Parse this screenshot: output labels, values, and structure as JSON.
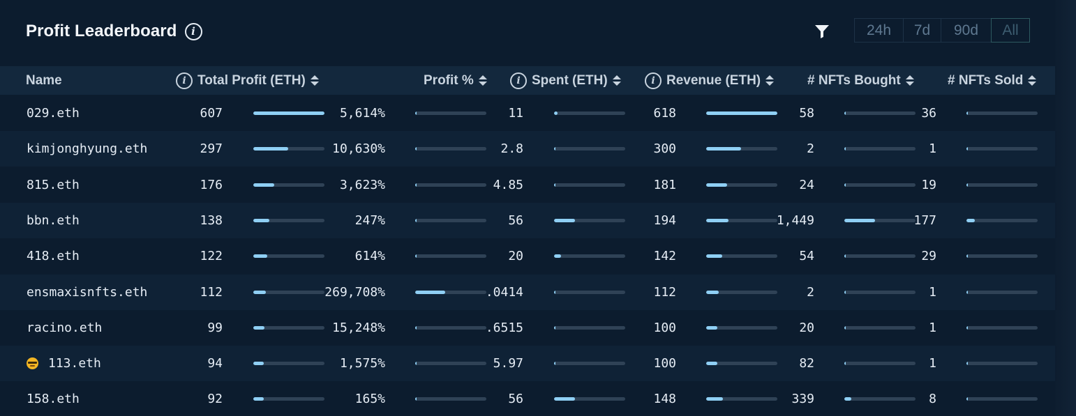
{
  "header": {
    "title": "Profit Leaderboard",
    "filter_icon": "filter-icon",
    "ranges": [
      "24h",
      "7d",
      "90d",
      "All"
    ],
    "active_range": "All"
  },
  "columns": {
    "name": "Name",
    "total_profit": "Total Profit (ETH)",
    "profit_pct": "Profit %",
    "spent": "Spent (ETH)",
    "revenue": "Revenue (ETH)",
    "nfts_bought": "# NFTs Bought",
    "nfts_sold": "# NFTs Sold"
  },
  "colors": {
    "background": "#0c1c2e",
    "header_row": "#13283d",
    "bar_track": "#2f4256",
    "bar_fill": "#8fcff4"
  },
  "rows": [
    {
      "name": "029.eth",
      "emoji": false,
      "profit": "607",
      "profit_frac": 1.0,
      "pct": "5,614%",
      "pct_frac": 0.02,
      "spent": "11",
      "spent_frac": 0.05,
      "revenue": "618",
      "revenue_frac": 1.0,
      "bought": "58",
      "bought_frac": 0.02,
      "sold": "36",
      "sold_frac": 0.02
    },
    {
      "name": "kimjonghyung.eth",
      "emoji": false,
      "profit": "297",
      "profit_frac": 0.49,
      "pct": "10,630%",
      "pct_frac": 0.02,
      "spent": "2.8",
      "spent_frac": 0.02,
      "revenue": "300",
      "revenue_frac": 0.49,
      "bought": "2",
      "bought_frac": 0.01,
      "sold": "1",
      "sold_frac": 0.0
    },
    {
      "name": "815.eth",
      "emoji": false,
      "profit": "176",
      "profit_frac": 0.29,
      "pct": "3,623%",
      "pct_frac": 0.02,
      "spent": "4.85",
      "spent_frac": 0.02,
      "revenue": "181",
      "revenue_frac": 0.29,
      "bought": "24",
      "bought_frac": 0.0,
      "sold": "19",
      "sold_frac": 0.0
    },
    {
      "name": "bbn.eth",
      "emoji": false,
      "profit": "138",
      "profit_frac": 0.23,
      "pct": "247%",
      "pct_frac": 0.0,
      "spent": "56",
      "spent_frac": 0.29,
      "revenue": "194",
      "revenue_frac": 0.31,
      "bought": "1,449",
      "bought_frac": 0.43,
      "sold": "177",
      "sold_frac": 0.12
    },
    {
      "name": "418.eth",
      "emoji": false,
      "profit": "122",
      "profit_frac": 0.2,
      "pct": "614%",
      "pct_frac": 0.0,
      "spent": "20",
      "spent_frac": 0.1,
      "revenue": "142",
      "revenue_frac": 0.23,
      "bought": "54",
      "bought_frac": 0.02,
      "sold": "29",
      "sold_frac": 0.02
    },
    {
      "name": "ensmaxisnfts.eth",
      "emoji": false,
      "profit": "112",
      "profit_frac": 0.18,
      "pct": "269,708%",
      "pct_frac": 0.42,
      "spent": ".0414",
      "spent_frac": 0.0,
      "revenue": "112",
      "revenue_frac": 0.18,
      "bought": "2",
      "bought_frac": 0.0,
      "sold": "1",
      "sold_frac": 0.0
    },
    {
      "name": "racino.eth",
      "emoji": false,
      "profit": "99",
      "profit_frac": 0.16,
      "pct": "15,248%",
      "pct_frac": 0.02,
      "spent": ".6515",
      "spent_frac": 0.0,
      "revenue": "100",
      "revenue_frac": 0.16,
      "bought": "20",
      "bought_frac": 0.0,
      "sold": "1",
      "sold_frac": 0.0
    },
    {
      "name": "113.eth",
      "emoji": true,
      "profit": "94",
      "profit_frac": 0.15,
      "pct": "1,575%",
      "pct_frac": 0.02,
      "spent": "5.97",
      "spent_frac": 0.02,
      "revenue": "100",
      "revenue_frac": 0.16,
      "bought": "82",
      "bought_frac": 0.02,
      "sold": "1",
      "sold_frac": 0.0
    },
    {
      "name": "158.eth",
      "emoji": false,
      "profit": "92",
      "profit_frac": 0.15,
      "pct": "165%",
      "pct_frac": 0.0,
      "spent": "56",
      "spent_frac": 0.29,
      "revenue": "148",
      "revenue_frac": 0.24,
      "bought": "339",
      "bought_frac": 0.1,
      "sold": "8",
      "sold_frac": 0.0
    }
  ]
}
